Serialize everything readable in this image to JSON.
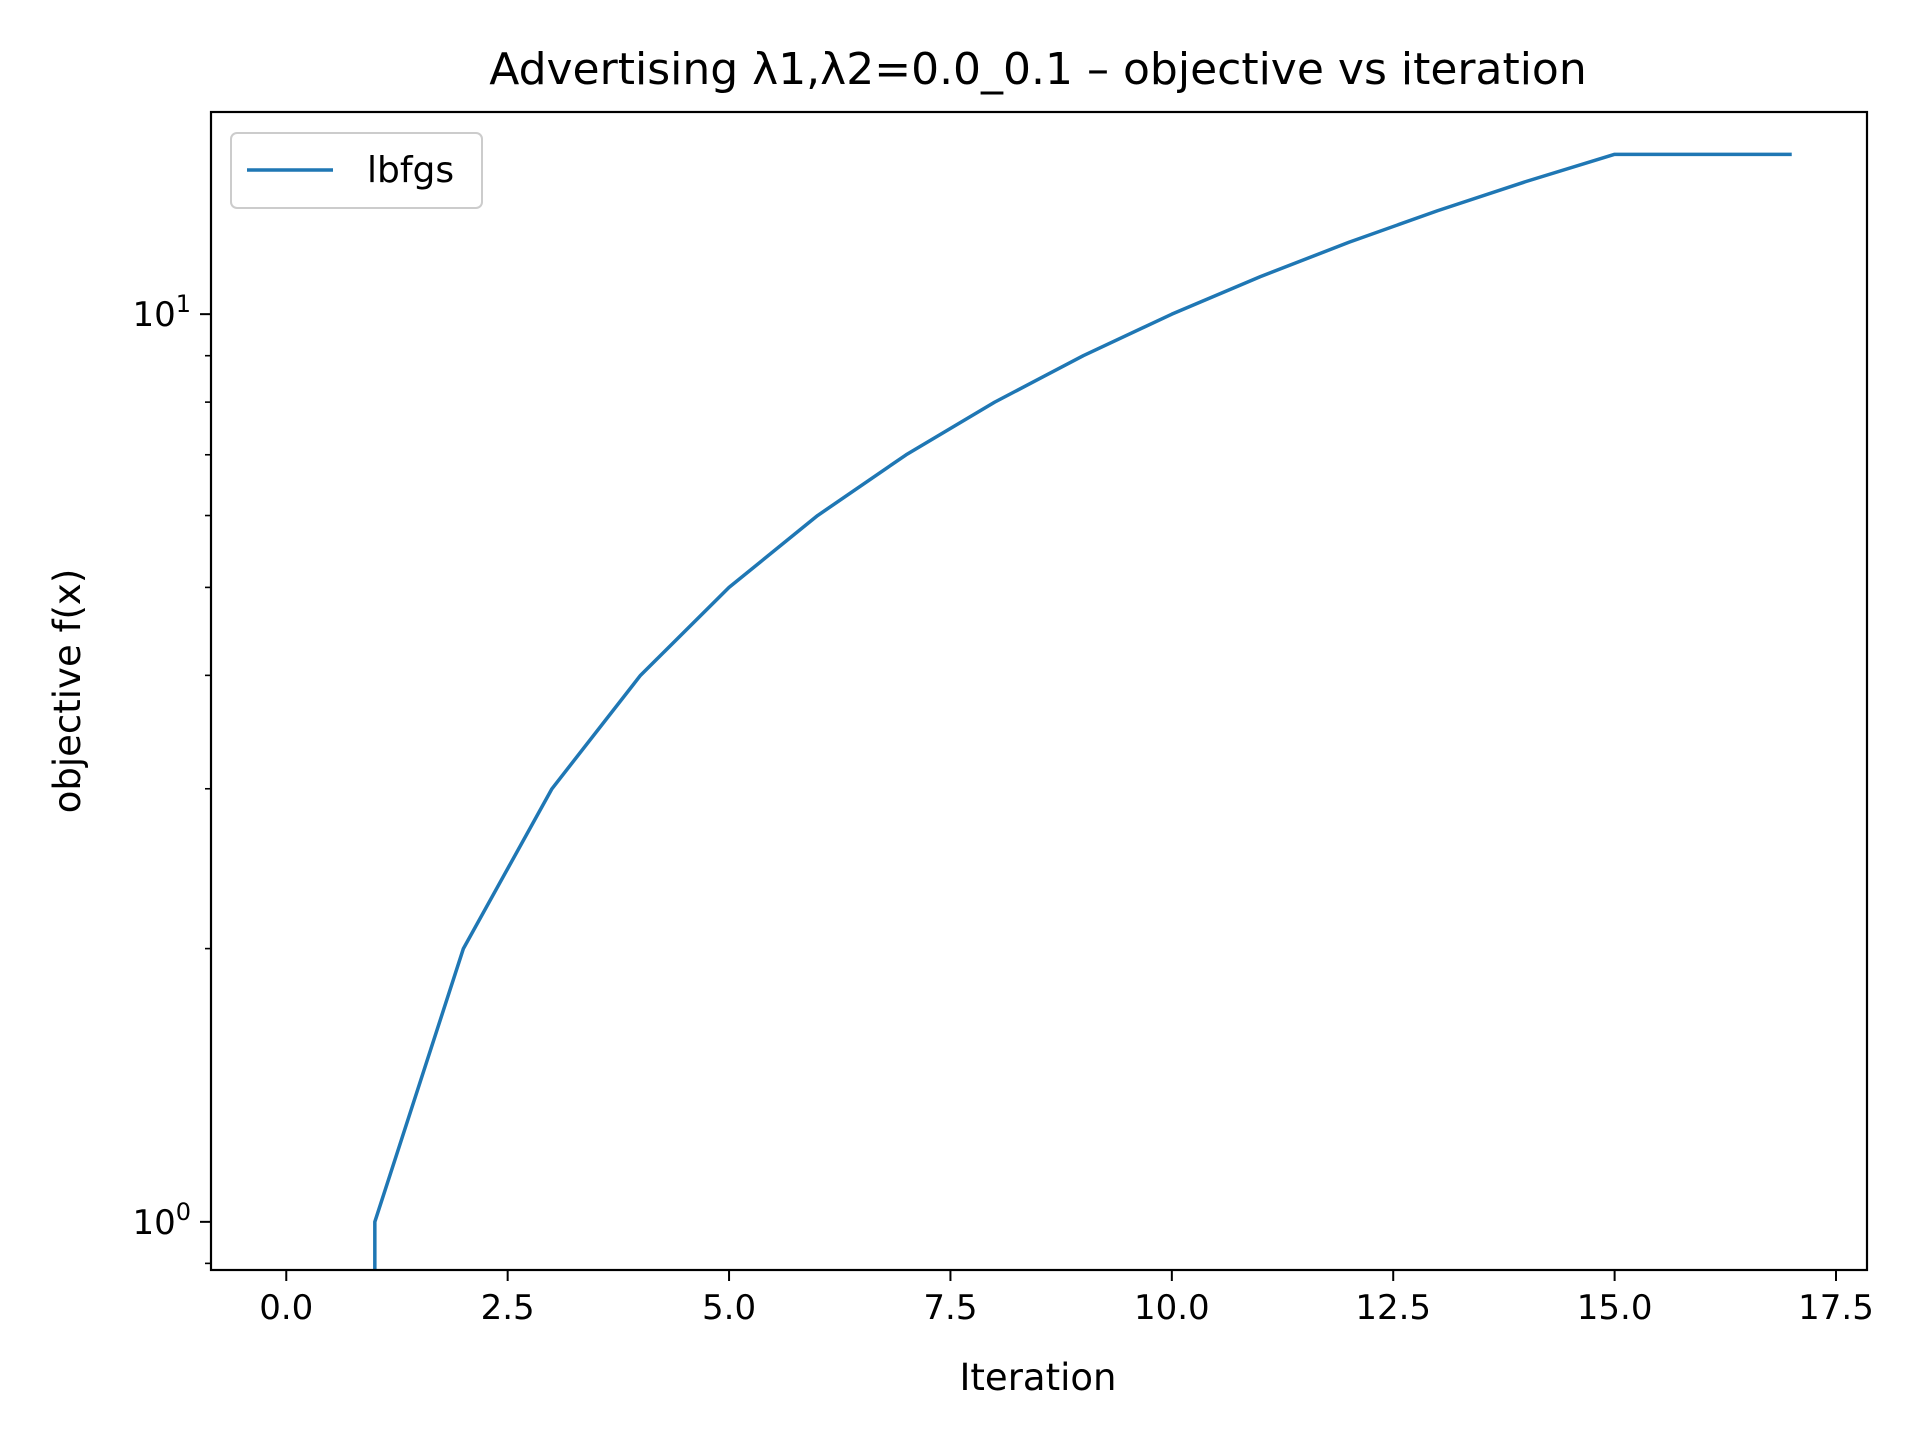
{
  "chart_data": {
    "type": "line",
    "title": "Advertising   λ1,λ2=0.0_0.1  –  objective vs iteration",
    "xlabel": "Iteration",
    "ylabel": "objective f(x)",
    "yscale": "log",
    "xlim": [
      -0.85,
      17.85
    ],
    "ylim": [
      0.885,
      16.7
    ],
    "x_ticks": [
      0.0,
      2.5,
      5.0,
      7.5,
      10.0,
      12.5,
      15.0,
      17.5
    ],
    "x_tick_labels": [
      "0.0",
      "2.5",
      "5.0",
      "7.5",
      "10.0",
      "12.5",
      "15.0",
      "17.5"
    ],
    "y_ticks": [
      1,
      10
    ],
    "y_tick_labels": [
      {
        "base": "10",
        "exp": "0"
      },
      {
        "base": "10",
        "exp": "1"
      }
    ],
    "grid": false,
    "legend_position": "top-left",
    "series": [
      {
        "name": "lbfgs",
        "color": "#1f77b4",
        "x": [
          1,
          1,
          2,
          3,
          4,
          5,
          6,
          7,
          8,
          9,
          10,
          11,
          12,
          13,
          14,
          15,
          16,
          17
        ],
        "y": [
          0.885,
          1,
          2,
          3,
          4,
          5,
          6,
          7,
          8,
          9,
          10,
          11,
          12,
          13,
          14,
          15,
          15,
          15
        ]
      }
    ]
  }
}
